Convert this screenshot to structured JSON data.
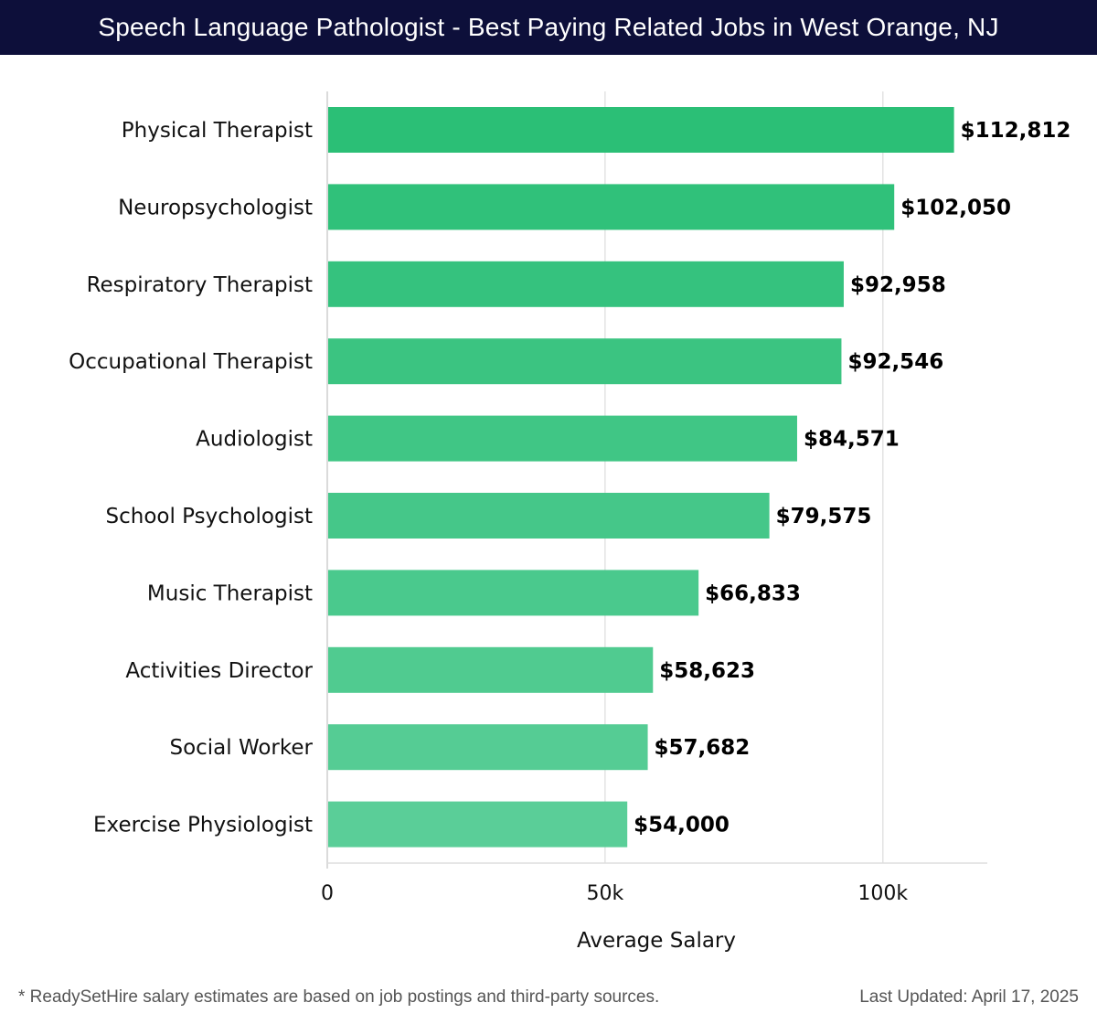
{
  "header": {
    "title": "Speech Language Pathologist - Best Paying Related Jobs in West Orange, NJ"
  },
  "chart_data": {
    "type": "bar",
    "orientation": "horizontal",
    "categories": [
      "Physical Therapist",
      "Neuropsychologist",
      "Respiratory Therapist",
      "Occupational Therapist",
      "Audiologist",
      "School Psychologist",
      "Music Therapist",
      "Activities Director",
      "Social Worker",
      "Exercise Physiologist"
    ],
    "values": [
      112812,
      102050,
      92958,
      92546,
      84571,
      79575,
      66833,
      58623,
      57682,
      54000
    ],
    "value_labels": [
      "$112,812",
      "$102,050",
      "$92,958",
      "$92,546",
      "$84,571",
      "$79,575",
      "$66,833",
      "$58,623",
      "$57,682",
      "$54,000"
    ],
    "xlabel": "Average Salary",
    "ylabel": "",
    "xlim": [
      0,
      118800
    ],
    "xticks": [
      0,
      50000,
      100000
    ],
    "xtick_labels": [
      "0",
      "50k",
      "100k"
    ],
    "grid": true,
    "bar_color_start": "#2bbf76",
    "bar_color_end": "#5ace98"
  },
  "footer": {
    "note": "* ReadySetHire salary estimates are based on job postings and third-party sources.",
    "updated": "Last Updated: April 17, 2025"
  }
}
